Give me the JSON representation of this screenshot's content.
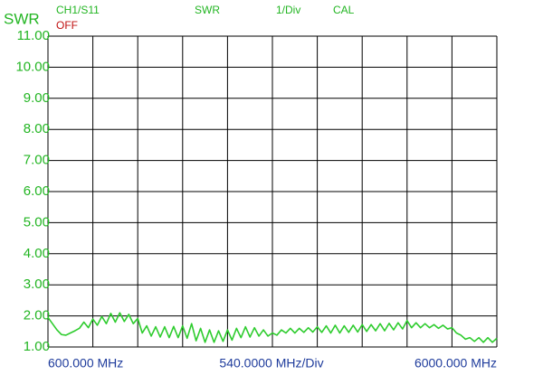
{
  "chart_data": {
    "type": "line",
    "ylabel": "SWR",
    "channel": "CH1/S11",
    "status": "OFF",
    "format": "SWR",
    "scale": "1/Div",
    "cal": "CAL",
    "xlabel_left": "600.000 MHz",
    "xlabel_center": "540.0000 MHz/Div",
    "xlabel_right": "6000.000 MHz",
    "color": "#2ecc2e",
    "grid": true,
    "xlim": [
      600,
      6000
    ],
    "xticks": [
      600,
      1140,
      1680,
      2220,
      2760,
      3300,
      3840,
      4380,
      4920,
      5460,
      6000
    ],
    "ylim": [
      1,
      11
    ],
    "yticks": [
      {
        "value": 11,
        "label": "11.00"
      },
      {
        "value": 10,
        "label": "10.00"
      },
      {
        "value": 9,
        "label": "9.00"
      },
      {
        "value": 8,
        "label": "8.00"
      },
      {
        "value": 7,
        "label": "7.00"
      },
      {
        "value": 6,
        "label": "6.00"
      },
      {
        "value": 5,
        "label": "5.00"
      },
      {
        "value": 4,
        "label": "4.00"
      },
      {
        "value": 3,
        "label": "3.00"
      },
      {
        "value": 2,
        "label": "2.00"
      },
      {
        "value": 1,
        "label": "1.00"
      }
    ],
    "x": [
      600,
      654,
      708,
      762,
      816,
      870,
      924,
      978,
      1032,
      1086,
      1140,
      1194,
      1248,
      1302,
      1356,
      1410,
      1464,
      1518,
      1572,
      1626,
      1680,
      1734,
      1788,
      1842,
      1896,
      1950,
      2004,
      2058,
      2112,
      2166,
      2220,
      2274,
      2328,
      2382,
      2436,
      2490,
      2544,
      2598,
      2652,
      2706,
      2760,
      2814,
      2868,
      2922,
      2976,
      3030,
      3084,
      3138,
      3192,
      3246,
      3300,
      3354,
      3408,
      3462,
      3516,
      3570,
      3624,
      3678,
      3732,
      3786,
      3840,
      3894,
      3948,
      4002,
      4056,
      4110,
      4164,
      4218,
      4272,
      4326,
      4380,
      4434,
      4488,
      4542,
      4596,
      4650,
      4704,
      4758,
      4812,
      4866,
      4920,
      4974,
      5028,
      5082,
      5136,
      5190,
      5244,
      5298,
      5352,
      5406,
      5460,
      5514,
      5568,
      5622,
      5676,
      5730,
      5784,
      5838,
      5892,
      5946,
      6000
    ],
    "values": [
      1.95,
      1.75,
      1.55,
      1.4,
      1.38,
      1.45,
      1.52,
      1.6,
      1.8,
      1.62,
      1.9,
      1.7,
      1.98,
      1.75,
      2.08,
      1.8,
      2.1,
      1.82,
      2.05,
      1.75,
      1.92,
      1.45,
      1.68,
      1.35,
      1.65,
      1.32,
      1.65,
      1.3,
      1.66,
      1.3,
      1.68,
      1.28,
      1.75,
      1.2,
      1.6,
      1.15,
      1.55,
      1.15,
      1.52,
      1.18,
      1.55,
      1.22,
      1.6,
      1.3,
      1.65,
      1.32,
      1.62,
      1.35,
      1.55,
      1.35,
      1.45,
      1.38,
      1.55,
      1.45,
      1.6,
      1.45,
      1.6,
      1.47,
      1.62,
      1.48,
      1.65,
      1.47,
      1.68,
      1.45,
      1.7,
      1.45,
      1.68,
      1.47,
      1.7,
      1.48,
      1.72,
      1.5,
      1.72,
      1.52,
      1.75,
      1.52,
      1.76,
      1.55,
      1.78,
      1.58,
      1.85,
      1.62,
      1.78,
      1.62,
      1.75,
      1.62,
      1.72,
      1.6,
      1.7,
      1.58,
      1.62,
      1.45,
      1.38,
      1.25,
      1.3,
      1.18,
      1.3,
      1.15,
      1.3,
      1.15,
      1.28
    ]
  }
}
